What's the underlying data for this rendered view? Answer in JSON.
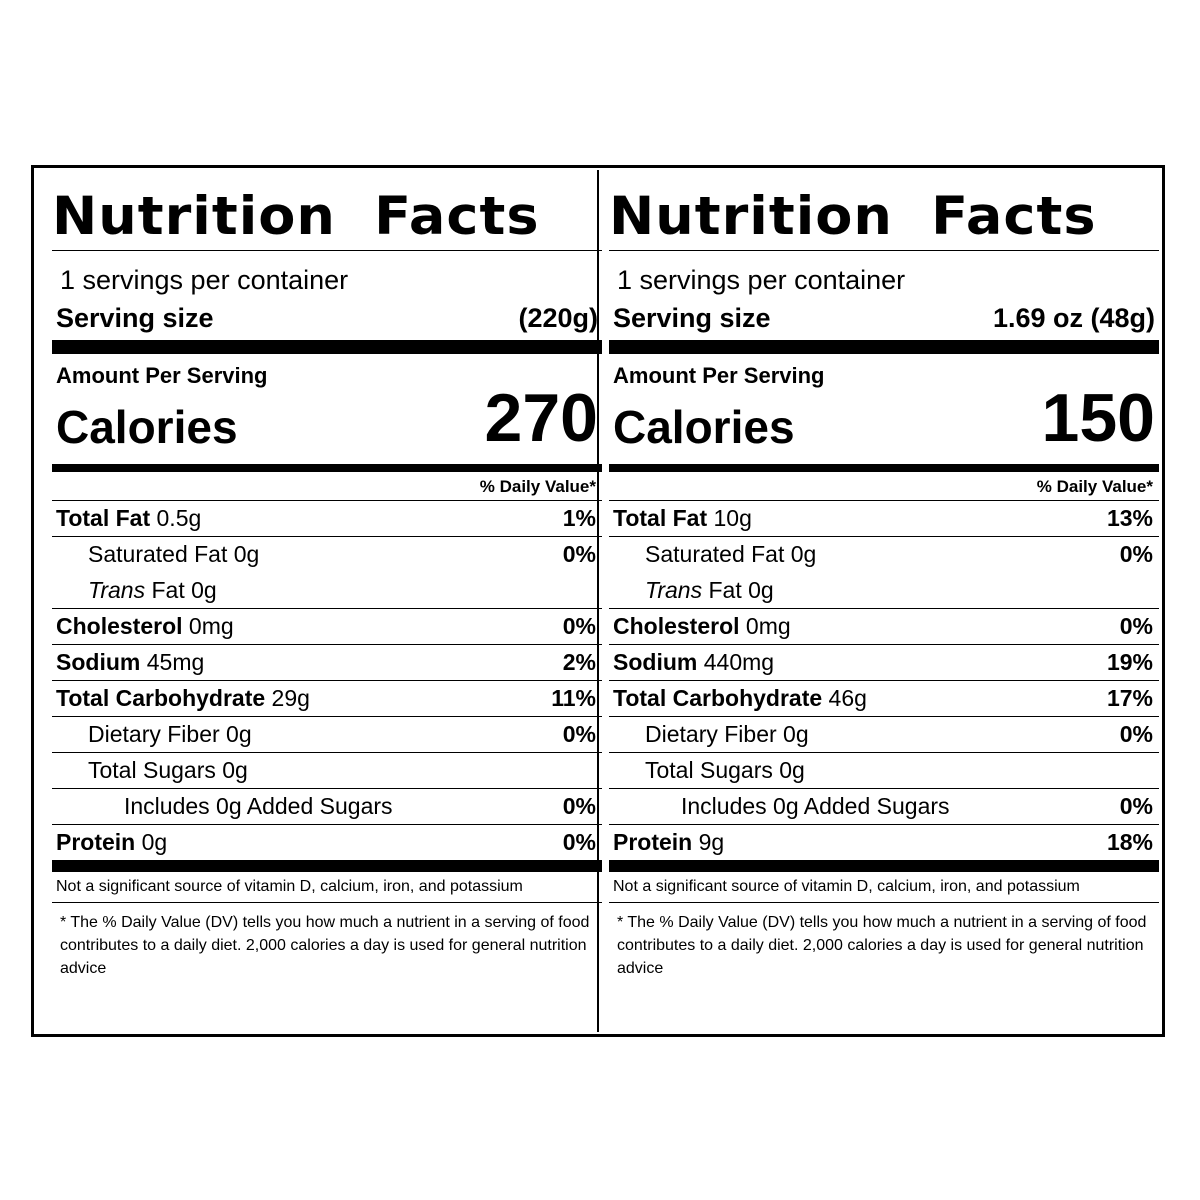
{
  "labels": [
    {
      "title": "Nutrition Facts",
      "servings_per_container": "1 servings per container",
      "serving_size_label": "Serving size",
      "serving_size_value": "(220g)",
      "amount_per_serving": "Amount Per Serving",
      "calories_label": "Calories",
      "calories_value": "270",
      "daily_value_header": "% Daily Value*",
      "nutrients": [
        {
          "name": "Total Fat",
          "amount": "0.5g",
          "pct": "1%"
        },
        {
          "name": "Saturated Fat",
          "amount": "0g",
          "pct": "0%"
        },
        {
          "name": "Trans",
          "amount": "Fat 0g",
          "pct": ""
        },
        {
          "name": "Cholesterol",
          "amount": "0mg",
          "pct": "0%"
        },
        {
          "name": "Sodium",
          "amount": "45mg",
          "pct": "2%"
        },
        {
          "name": "Total Carbohydrate",
          "amount": "29g",
          "pct": "11%"
        },
        {
          "name": "Dietary Fiber",
          "amount": "0g",
          "pct": "0%"
        },
        {
          "name": "Total Sugars",
          "amount": "0g",
          "pct": ""
        },
        {
          "name": "Includes 0g Added Sugars",
          "amount": "",
          "pct": "0%"
        },
        {
          "name": "Protein",
          "amount": "0g",
          "pct": "0%"
        }
      ],
      "not_significant": "Not a significant source of vitamin D, calcium, iron, and potassium",
      "footnote": "* The % Daily Value (DV) tells you how much a nutrient in a serving of food contributes to a daily diet. 2,000 calories a day is used for general nutrition advice"
    },
    {
      "title": "Nutrition Facts",
      "servings_per_container": "1 servings per container",
      "serving_size_label": "Serving size",
      "serving_size_value": "1.69 oz (48g)",
      "amount_per_serving": "Amount Per Serving",
      "calories_label": "Calories",
      "calories_value": "150",
      "daily_value_header": "% Daily Value*",
      "nutrients": [
        {
          "name": "Total Fat",
          "amount": "10g",
          "pct": "13%"
        },
        {
          "name": "Saturated Fat",
          "amount": "0g",
          "pct": "0%"
        },
        {
          "name": "Trans",
          "amount": "Fat 0g",
          "pct": ""
        },
        {
          "name": "Cholesterol",
          "amount": "0mg",
          "pct": "0%"
        },
        {
          "name": "Sodium",
          "amount": "440mg",
          "pct": "19%"
        },
        {
          "name": "Total Carbohydrate",
          "amount": "46g",
          "pct": "17%"
        },
        {
          "name": "Dietary Fiber",
          "amount": "0g",
          "pct": "0%"
        },
        {
          "name": "Total Sugars",
          "amount": "0g",
          "pct": ""
        },
        {
          "name": "Includes 0g Added Sugars",
          "amount": "",
          "pct": "0%"
        },
        {
          "name": "Protein",
          "amount": "9g",
          "pct": "18%"
        }
      ],
      "not_significant": "Not a significant source of vitamin D, calcium, iron, and potassium",
      "footnote": "* The % Daily Value (DV) tells you how much a nutrient in a serving of food contributes to a daily diet. 2,000 calories a day is used for general nutrition advice"
    }
  ]
}
